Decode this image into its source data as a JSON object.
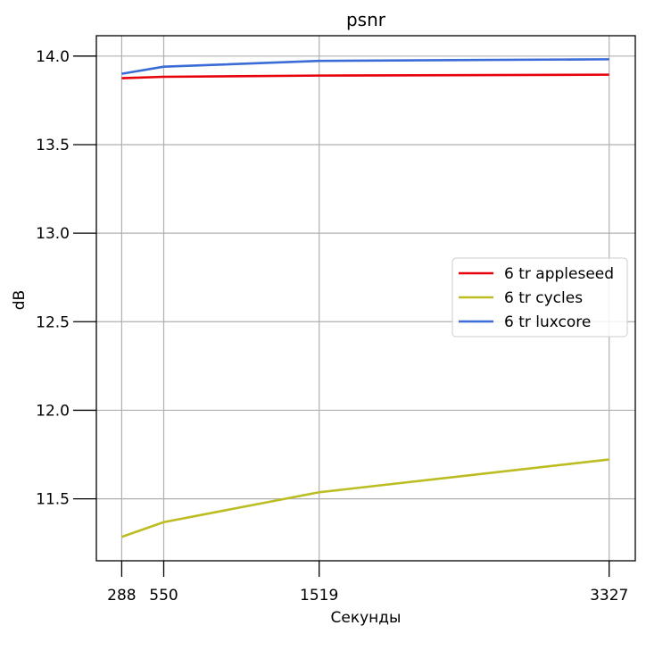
{
  "chart_data": {
    "type": "line",
    "title": "psnr",
    "xlabel": "Секунды",
    "ylabel": "dB",
    "x": [
      288,
      550,
      1519,
      3327
    ],
    "x_tick_labels": [
      "288",
      "550",
      "1519",
      "3327"
    ],
    "xlim": [
      130,
      3490
    ],
    "y_ticks": [
      11.5,
      12.0,
      12.5,
      13.0,
      13.5,
      14.0
    ],
    "y_tick_labels": [
      "11.5",
      "12.0",
      "12.5",
      "13.0",
      "13.5",
      "14.0"
    ],
    "ylim": [
      11.15,
      14.115
    ],
    "grid": true,
    "legend_position": "center-right",
    "series": [
      {
        "name": "6 tr appleseed",
        "color": "#e8000b",
        "values": [
          13.875,
          13.883,
          13.89,
          13.895
        ]
      },
      {
        "name": "6 tr cycles",
        "color": "#bcbd22",
        "values": [
          11.285,
          11.368,
          11.537,
          11.722
        ]
      },
      {
        "name": "6 tr luxcore",
        "color": "#3a6bd6",
        "values": [
          13.9,
          13.94,
          13.973,
          13.982
        ]
      }
    ]
  }
}
